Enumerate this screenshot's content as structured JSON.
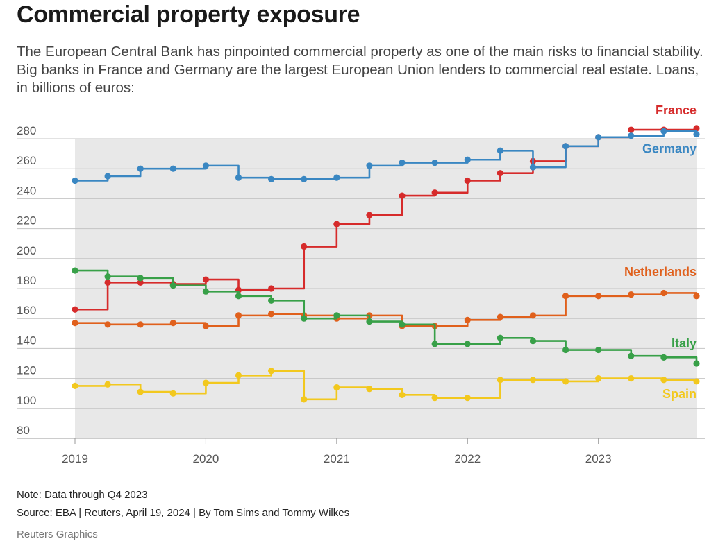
{
  "header": {
    "title": "Commercial property exposure",
    "subtitle": "The European Central Bank has pinpointed commercial property as one of the main risks to financial stability. Big banks in France and Germany are the largest European Union lenders to commercial real estate. Loans, in billions of euros:"
  },
  "footer": {
    "note": "Note: Data through Q4 2023",
    "source": "Source: EBA | Reuters, April 19, 2024 | By Tom Sims and Tommy Wilkes",
    "credit": "Reuters Graphics"
  },
  "chart_data": {
    "type": "line",
    "step": true,
    "title": "Commercial property exposure",
    "xlabel": "",
    "ylabel": "Loans, in billions of euros",
    "ylim": [
      80,
      280
    ],
    "yticks": [
      80,
      100,
      120,
      140,
      160,
      180,
      200,
      220,
      240,
      260,
      280
    ],
    "xlim": [
      2019.0,
      2023.75
    ],
    "xticks": [
      2019,
      2020,
      2021,
      2022,
      2023
    ],
    "xtick_labels": [
      "2019",
      "2020",
      "2021",
      "2022",
      "2023"
    ],
    "grid": true,
    "x": [
      2019.0,
      2019.25,
      2019.5,
      2019.75,
      2020.0,
      2020.25,
      2020.5,
      2020.75,
      2021.0,
      2021.25,
      2021.5,
      2021.75,
      2022.0,
      2022.25,
      2022.5,
      2022.75,
      2023.0,
      2023.25,
      2023.5,
      2023.75
    ],
    "series": [
      {
        "name": "France",
        "color": "#d62b2b",
        "values": [
          166,
          184,
          184,
          183,
          186,
          179,
          180,
          208,
          223,
          229,
          242,
          244,
          252,
          257,
          265,
          275,
          281,
          286,
          286,
          287
        ]
      },
      {
        "name": "Germany",
        "color": "#3a87c2",
        "values": [
          252,
          255,
          260,
          260,
          262,
          254,
          253,
          253,
          254,
          262,
          264,
          264,
          266,
          272,
          261,
          275,
          281,
          282,
          285,
          283
        ]
      },
      {
        "name": "Netherlands",
        "color": "#e0601c",
        "values": [
          157,
          156,
          156,
          157,
          155,
          162,
          163,
          162,
          160,
          162,
          155,
          155,
          159,
          161,
          162,
          175,
          175,
          176,
          177,
          175
        ]
      },
      {
        "name": "Italy",
        "color": "#38a048",
        "values": [
          192,
          188,
          187,
          182,
          178,
          175,
          172,
          160,
          162,
          158,
          156,
          143,
          143,
          147,
          145,
          139,
          139,
          135,
          134,
          130
        ]
      },
      {
        "name": "Spain",
        "color": "#f2c81e",
        "values": [
          115,
          116,
          111,
          110,
          117,
          122,
          125,
          106,
          114,
          113,
          109,
          107,
          107,
          119,
          119,
          118,
          120,
          120,
          119,
          118
        ]
      }
    ]
  }
}
